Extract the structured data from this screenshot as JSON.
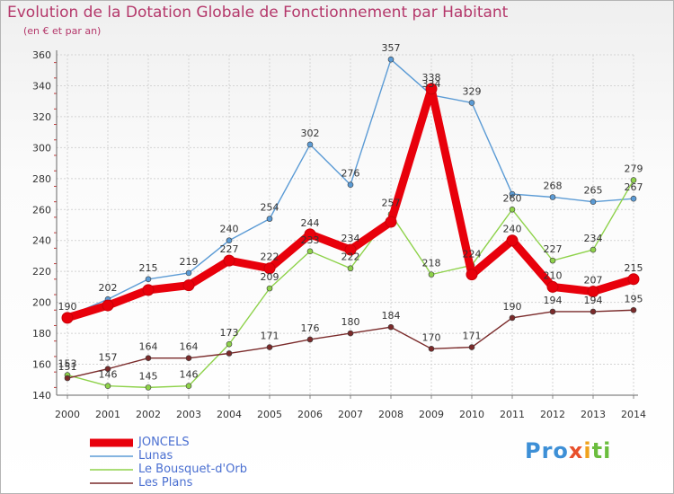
{
  "chart_data": {
    "type": "line",
    "title": "Evolution de la Dotation Globale de Fonctionnement par Habitant",
    "subtitle": "(en € et par an)",
    "xlabel": "",
    "ylabel": "",
    "x": [
      "2000",
      "2001",
      "2002",
      "2003",
      "2004",
      "2005",
      "2006",
      "2007",
      "2008",
      "2009",
      "2010",
      "2011",
      "2012",
      "2013",
      "2014"
    ],
    "ylim": [
      140,
      360
    ],
    "yticks": [
      140,
      160,
      180,
      200,
      220,
      240,
      260,
      280,
      300,
      320,
      340,
      360
    ],
    "grid": true,
    "legend_position": "bottom-left",
    "series": [
      {
        "name": "JONCELS",
        "color": "#e8000b",
        "values": [
          190,
          198,
          208,
          211,
          227,
          222,
          244,
          234,
          252,
          338,
          218,
          240,
          210,
          207,
          215
        ],
        "labels": [
          "190",
          "",
          "",
          "",
          "227",
          "222",
          "244",
          "234",
          "",
          "338",
          "",
          "240",
          "210",
          "207",
          "215"
        ]
      },
      {
        "name": "Lunas",
        "color": "#5b9bd5",
        "values": [
          191,
          202,
          215,
          219,
          240,
          254,
          302,
          276,
          357,
          334,
          329,
          270,
          268,
          265,
          267
        ],
        "labels": [
          "",
          "202",
          "215",
          "219",
          "240",
          "254",
          "302",
          "276",
          "357",
          "334",
          "329",
          "",
          "268",
          "265",
          "267"
        ]
      },
      {
        "name": "Le Bousquet-d'Orb",
        "color": "#8ed24a",
        "values": [
          153,
          146,
          145,
          146,
          173,
          209,
          233,
          222,
          257,
          218,
          224,
          260,
          227,
          234,
          279
        ],
        "labels": [
          "153",
          "146",
          "145",
          "146",
          "173",
          "209",
          "233",
          "222",
          "257",
          "218",
          "224",
          "260",
          "227",
          "234",
          "279"
        ]
      },
      {
        "name": "Les Plans",
        "color": "#7a2a2a",
        "values": [
          151,
          157,
          164,
          164,
          167,
          171,
          176,
          180,
          184,
          170,
          171,
          190,
          194,
          194,
          195
        ],
        "labels": [
          "151",
          "157",
          "164",
          "164",
          "",
          "171",
          "176",
          "180",
          "184",
          "170",
          "171",
          "190",
          "194",
          "194",
          "195"
        ]
      }
    ]
  },
  "branding": {
    "logo_parts": [
      "Pro",
      "x",
      "i",
      "ti"
    ]
  }
}
